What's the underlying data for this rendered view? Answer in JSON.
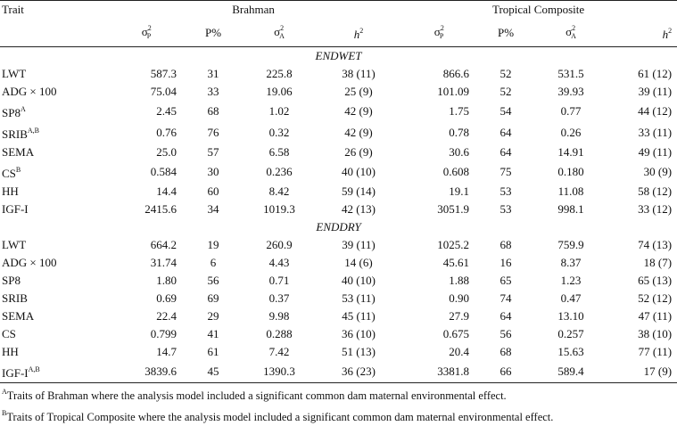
{
  "header": {
    "trait_label": "Trait",
    "group1": "Brahman",
    "group2": "Tropical Composite",
    "sigma_p_symbol": "σ",
    "sigma_p_sup": "2",
    "sigma_p_sub": "P",
    "p_percent": "P%",
    "sigma_a_symbol": "σ",
    "sigma_a_sup": "2",
    "sigma_a_sub": "A",
    "h2_symbol": "h",
    "h2_sup": "2"
  },
  "sections": [
    {
      "name": "ENDWET",
      "rows": [
        {
          "trait": "LWT",
          "trait_sup": "",
          "b_sp": "587.3",
          "b_p": "31",
          "b_sa": "225.8",
          "b_h2": "38 (11)",
          "t_sp": "866.6",
          "t_p": "52",
          "t_sa": "531.5",
          "t_h2": "61 (12)"
        },
        {
          "trait": "ADG × 100",
          "trait_sup": "",
          "b_sp": "75.04",
          "b_p": "33",
          "b_sa": "19.06",
          "b_h2": "25 (9)",
          "t_sp": "101.09",
          "t_p": "52",
          "t_sa": "39.93",
          "t_h2": "39 (11)"
        },
        {
          "trait": "SP8",
          "trait_sup": "A",
          "b_sp": "2.45",
          "b_p": "68",
          "b_sa": "1.02",
          "b_h2": "42 (9)",
          "t_sp": "1.75",
          "t_p": "54",
          "t_sa": "0.77",
          "t_h2": "44 (12)"
        },
        {
          "trait": "SRIB",
          "trait_sup": "A,B",
          "b_sp": "0.76",
          "b_p": "76",
          "b_sa": "0.32",
          "b_h2": "42 (9)",
          "t_sp": "0.78",
          "t_p": "64",
          "t_sa": "0.26",
          "t_h2": "33 (11)"
        },
        {
          "trait": "SEMA",
          "trait_sup": "",
          "b_sp": "25.0",
          "b_p": "57",
          "b_sa": "6.58",
          "b_h2": "26 (9)",
          "t_sp": "30.6",
          "t_p": "64",
          "t_sa": "14.91",
          "t_h2": "49 (11)"
        },
        {
          "trait": "CS",
          "trait_sup": "B",
          "b_sp": "0.584",
          "b_p": "30",
          "b_sa": "0.236",
          "b_h2": "40 (10)",
          "t_sp": "0.608",
          "t_p": "75",
          "t_sa": "0.180",
          "t_h2": "30 (9)"
        },
        {
          "trait": "HH",
          "trait_sup": "",
          "b_sp": "14.4",
          "b_p": "60",
          "b_sa": "8.42",
          "b_h2": "59 (14)",
          "t_sp": "19.1",
          "t_p": "53",
          "t_sa": "11.08",
          "t_h2": "58 (12)"
        },
        {
          "trait": "IGF-I",
          "trait_sup": "",
          "b_sp": "2415.6",
          "b_p": "34",
          "b_sa": "1019.3",
          "b_h2": "42 (13)",
          "t_sp": "3051.9",
          "t_p": "53",
          "t_sa": "998.1",
          "t_h2": "33 (12)"
        }
      ]
    },
    {
      "name": "ENDDRY",
      "rows": [
        {
          "trait": "LWT",
          "trait_sup": "",
          "b_sp": "664.2",
          "b_p": "19",
          "b_sa": "260.9",
          "b_h2": "39 (11)",
          "t_sp": "1025.2",
          "t_p": "68",
          "t_sa": "759.9",
          "t_h2": "74 (13)"
        },
        {
          "trait": "ADG × 100",
          "trait_sup": "",
          "b_sp": "31.74",
          "b_p": "6",
          "b_sa": "4.43",
          "b_h2": "14 (6)",
          "t_sp": "45.61",
          "t_p": "16",
          "t_sa": "8.37",
          "t_h2": "18 (7)"
        },
        {
          "trait": "SP8",
          "trait_sup": "",
          "b_sp": "1.80",
          "b_p": "56",
          "b_sa": "0.71",
          "b_h2": "40 (10)",
          "t_sp": "1.88",
          "t_p": "65",
          "t_sa": "1.23",
          "t_h2": "65 (13)"
        },
        {
          "trait": "SRIB",
          "trait_sup": "",
          "b_sp": "0.69",
          "b_p": "69",
          "b_sa": "0.37",
          "b_h2": "53 (11)",
          "t_sp": "0.90",
          "t_p": "74",
          "t_sa": "0.47",
          "t_h2": "52 (12)"
        },
        {
          "trait": "SEMA",
          "trait_sup": "",
          "b_sp": "22.4",
          "b_p": "29",
          "b_sa": "9.98",
          "b_h2": "45 (11)",
          "t_sp": "27.9",
          "t_p": "64",
          "t_sa": "13.10",
          "t_h2": "47 (11)"
        },
        {
          "trait": "CS",
          "trait_sup": "",
          "b_sp": "0.799",
          "b_p": "41",
          "b_sa": "0.288",
          "b_h2": "36 (10)",
          "t_sp": "0.675",
          "t_p": "56",
          "t_sa": "0.257",
          "t_h2": "38 (10)"
        },
        {
          "trait": "HH",
          "trait_sup": "",
          "b_sp": "14.7",
          "b_p": "61",
          "b_sa": "7.42",
          "b_h2": "51 (13)",
          "t_sp": "20.4",
          "t_p": "68",
          "t_sa": "15.63",
          "t_h2": "77 (11)"
        },
        {
          "trait": "IGF-I",
          "trait_sup": "A,B",
          "b_sp": "3839.6",
          "b_p": "45",
          "b_sa": "1390.3",
          "b_h2": "36 (23)",
          "t_sp": "3381.8",
          "t_p": "66",
          "t_sa": "589.4",
          "t_h2": "17 (9)"
        }
      ]
    }
  ],
  "footnotes": [
    {
      "mark": "A",
      "text": "Traits of Brahman where the analysis model included a significant common dam maternal environmental effect."
    },
    {
      "mark": "B",
      "text": "Traits of Tropical Composite where the analysis model included a significant common dam maternal environmental effect."
    }
  ]
}
